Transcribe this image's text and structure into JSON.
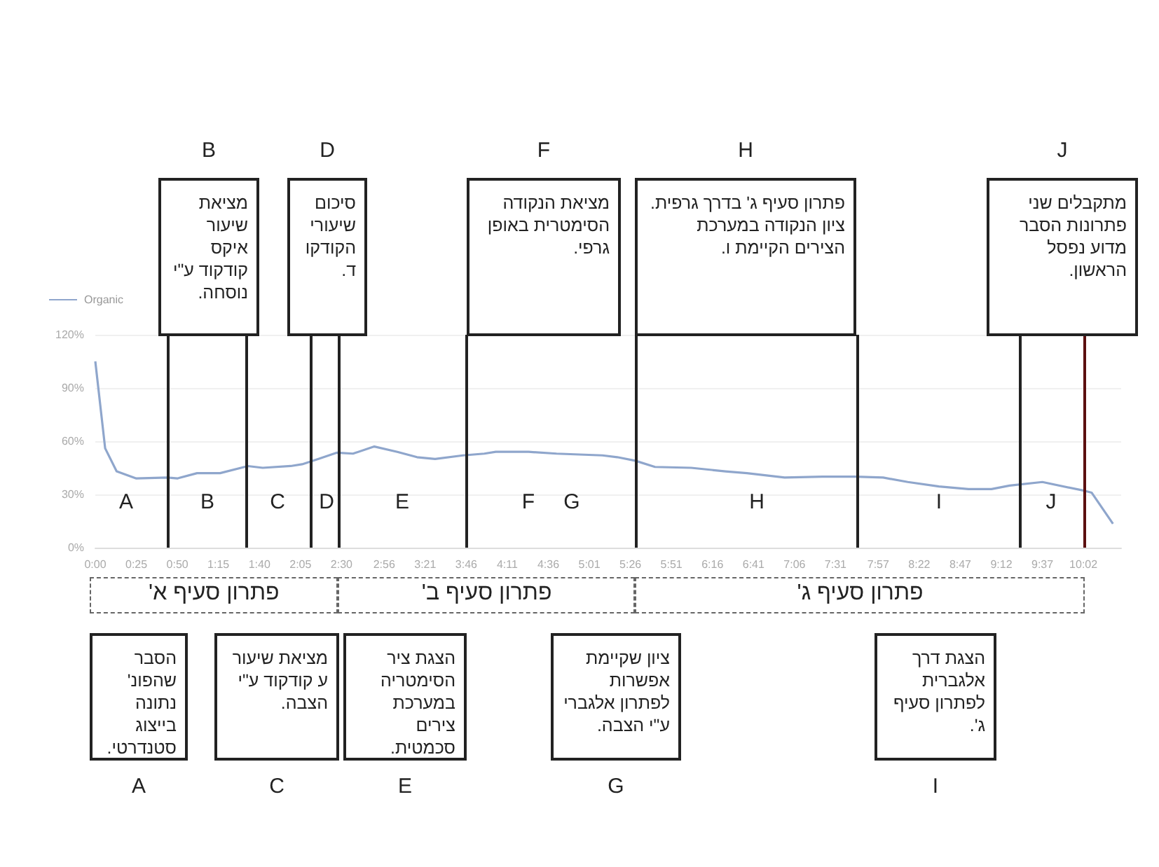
{
  "chart_data": {
    "type": "line",
    "x": [
      0,
      6,
      13,
      25,
      44,
      50,
      62,
      76,
      93,
      102,
      119,
      126,
      136,
      147,
      157,
      170,
      184,
      196,
      207,
      224,
      237,
      244,
      264,
      281,
      309,
      318,
      329,
      341,
      363,
      384,
      397,
      420,
      443,
      463,
      480,
      495,
      514,
      532,
      546,
      557,
      577,
      603,
      607,
      620
    ],
    "series": [
      {
        "name": "Organic",
        "color": "#8fa6cc",
        "values": [
          105,
          56,
          43,
          39,
          39.5,
          39,
          42,
          42,
          46,
          45,
          46,
          47,
          50,
          53.5,
          53,
          57,
          54,
          51,
          50,
          52,
          53,
          54,
          54,
          53,
          52,
          51,
          49,
          45.5,
          45,
          43,
          42,
          39.5,
          40,
          40,
          39.5,
          37,
          34.5,
          33,
          33,
          35,
          37,
          32,
          31,
          13.5
        ]
      }
    ],
    "xlim": [
      0,
      625
    ],
    "xticks": [
      {
        "value": 0,
        "label": "0:00"
      },
      {
        "value": 25,
        "label": "0:25"
      },
      {
        "value": 50,
        "label": "0:50"
      },
      {
        "value": 75,
        "label": "1:15"
      },
      {
        "value": 100,
        "label": "1:40"
      },
      {
        "value": 125,
        "label": "2:05"
      },
      {
        "value": 150,
        "label": "2:30"
      },
      {
        "value": 176,
        "label": "2:56"
      },
      {
        "value": 201,
        "label": "3:21"
      },
      {
        "value": 226,
        "label": "3:46"
      },
      {
        "value": 251,
        "label": "4:11"
      },
      {
        "value": 276,
        "label": "4:36"
      },
      {
        "value": 301,
        "label": "5:01"
      },
      {
        "value": 326,
        "label": "5:26"
      },
      {
        "value": 351,
        "label": "5:51"
      },
      {
        "value": 376,
        "label": "6:16"
      },
      {
        "value": 401,
        "label": "6:41"
      },
      {
        "value": 426,
        "label": "7:06"
      },
      {
        "value": 451,
        "label": "7:31"
      },
      {
        "value": 477,
        "label": "7:57"
      },
      {
        "value": 502,
        "label": "8:22"
      },
      {
        "value": 527,
        "label": "8:47"
      },
      {
        "value": 552,
        "label": "9:12"
      },
      {
        "value": 577,
        "label": "9:37"
      },
      {
        "value": 602,
        "label": "10:02"
      }
    ],
    "ylim": [
      0,
      120
    ],
    "yticks": [
      {
        "value": 0,
        "label": "0%"
      },
      {
        "value": 30,
        "label": "30%"
      },
      {
        "value": 60,
        "label": "60%"
      },
      {
        "value": 90,
        "label": "90%"
      },
      {
        "value": 120,
        "label": "120%"
      }
    ],
    "grid": "y",
    "legend": "top left",
    "marker": "none",
    "ref_lines": [
      {
        "axis": "x",
        "value": 44,
        "color": "#222222"
      },
      {
        "axis": "x",
        "value": 92,
        "color": "#222222"
      },
      {
        "axis": "x",
        "value": 131,
        "color": "#222222"
      },
      {
        "axis": "x",
        "value": 148,
        "color": "#222222"
      },
      {
        "axis": "x",
        "value": 226,
        "color": "#222222"
      },
      {
        "axis": "x",
        "value": 329,
        "color": "#222222"
      },
      {
        "axis": "x",
        "value": 464,
        "color": "#222222"
      },
      {
        "axis": "x",
        "value": 563,
        "color": "#222222"
      },
      {
        "axis": "x",
        "value": 603,
        "color": "#5c1010"
      }
    ],
    "annotations": [
      "A",
      "B",
      "C",
      "D",
      "E",
      "F",
      "G",
      "H",
      "I",
      "J",
      "הסבר שהפונ' נתונה בייצוג סטנדרטי.",
      "מציאת שיעור איקס קודקוד ע\"י נוסחה.",
      "מציאת שיעור ע קודקוד ע\"י הצבה.",
      "סיכום שיעורי הקודקוד.",
      "הצגת ציר הסימטריה במערכת צירים סכמטית.",
      "מציאת הנקודה הסימטרית באופן גרפי.",
      "ציון שקיימת אפשרות לפתרון אלגברי ע\"י הצבה.",
      "פתרון סעיף ג' בדרך גרפית. ציון הנקודה במערכת הצירים הקיימת ו.",
      "הצגת דרך אלגברית לפתרון סעיף ג'.",
      "מתקבלים שני פתרונות הסבר מדוע נפסל הראשון.",
      "פתרון סעיף א'",
      "פתרון סעיף ב'",
      "פתרון סעיף ג'"
    ]
  }
}
